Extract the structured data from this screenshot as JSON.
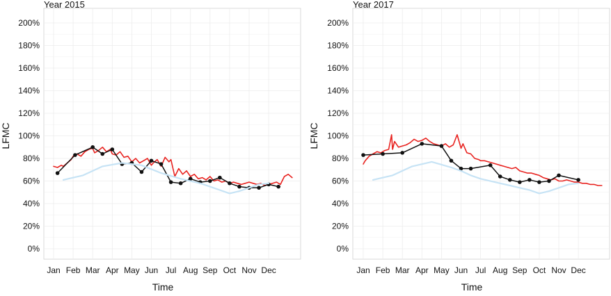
{
  "colors": {
    "red": "#e8221f",
    "black": "#111111",
    "light_blue": "#c6e3f5",
    "grid": "#ececec"
  },
  "chart_data": [
    {
      "type": "line",
      "title": "Year 2015",
      "xlabel": "Time",
      "ylabel": "LFMC",
      "x_tick_labels": [
        "Jan",
        "Feb",
        "Mar",
        "Apr",
        "May",
        "Jun",
        "Jul",
        "Aug",
        "Sep",
        "Oct",
        "Nov",
        "Dec"
      ],
      "y_tick_labels": [
        "0%",
        "20%",
        "40%",
        "60%",
        "80%",
        "100%",
        "120%",
        "140%",
        "160%",
        "180%",
        "200%"
      ],
      "ylim": [
        0,
        200
      ],
      "xlim": [
        0,
        12.6
      ],
      "grid": true,
      "series": [
        {
          "color": "red",
          "style": "line",
          "x": [
            0,
            0.2,
            0.4,
            0.5,
            0.7,
            0.9,
            1.0,
            1.2,
            1.4,
            1.6,
            1.8,
            2.0,
            2.1,
            2.3,
            2.5,
            2.7,
            2.9,
            3.0,
            3.2,
            3.4,
            3.6,
            3.8,
            4.0,
            4.2,
            4.4,
            4.6,
            4.8,
            5.0,
            5.1,
            5.3,
            5.5,
            5.7,
            5.9,
            6.0,
            6.2,
            6.4,
            6.6,
            6.8,
            7.0,
            7.2,
            7.4,
            7.6,
            7.8,
            8.0,
            8.2,
            8.4,
            8.6,
            8.8,
            9.0,
            9.2,
            9.4,
            9.6,
            9.8,
            10.0,
            10.2,
            10.4,
            10.6,
            10.8,
            11.0,
            11.2,
            11.4,
            11.6,
            11.8,
            12.0,
            12.2
          ],
          "y": [
            73,
            72,
            74,
            73,
            76,
            79,
            82,
            84,
            82,
            86,
            88,
            89,
            85,
            87,
            90,
            86,
            88,
            84,
            83,
            86,
            81,
            82,
            77,
            80,
            76,
            78,
            80,
            74,
            76,
            79,
            73,
            81,
            77,
            79,
            64,
            71,
            66,
            69,
            64,
            66,
            62,
            63,
            61,
            64,
            60,
            61,
            59,
            60,
            58,
            59,
            58,
            57,
            58,
            59,
            58,
            57,
            58,
            56,
            57,
            58,
            59,
            57,
            64,
            66,
            63
          ]
        },
        {
          "color": "black",
          "style": "line-markers",
          "x": [
            0.2,
            1.1,
            2.0,
            2.5,
            3.0,
            3.5,
            4.0,
            4.5,
            5.0,
            5.5,
            6.0,
            6.5,
            7.0,
            7.5,
            8.0,
            8.5,
            9.0,
            9.5,
            10.0,
            10.5,
            11.0,
            11.5
          ],
          "y": [
            67,
            83,
            90,
            84,
            88,
            75,
            76,
            68,
            78,
            75,
            59,
            58,
            62,
            59,
            60,
            63,
            58,
            55,
            54,
            54,
            57,
            55
          ]
        },
        {
          "color": "light_blue",
          "style": "line",
          "x": [
            0.5,
            1.5,
            2.5,
            3.5,
            4.5,
            5.5,
            6.5,
            7.5,
            8.5,
            9.0,
            9.5,
            10.0,
            10.5,
            11.0
          ],
          "y": [
            61,
            65,
            73,
            76,
            74,
            67,
            62,
            58,
            52,
            49,
            51,
            54,
            57,
            58
          ]
        }
      ]
    },
    {
      "type": "line",
      "title": "Year 2017",
      "xlabel": "Time",
      "ylabel": "LFMC",
      "x_tick_labels": [
        "Jan",
        "Feb",
        "Mar",
        "Apr",
        "May",
        "Jun",
        "Jul",
        "Aug",
        "Sep",
        "Oct",
        "Nov",
        "Dec"
      ],
      "y_tick_labels": [
        "0%",
        "20%",
        "40%",
        "60%",
        "80%",
        "100%",
        "120%",
        "140%",
        "160%",
        "180%",
        "200%"
      ],
      "ylim": [
        0,
        200
      ],
      "xlim": [
        0,
        12.6
      ],
      "grid": true,
      "series": [
        {
          "color": "red",
          "style": "line",
          "x": [
            0,
            0.1,
            0.3,
            0.5,
            0.7,
            0.9,
            1.1,
            1.3,
            1.45,
            1.5,
            1.6,
            1.8,
            2.0,
            2.2,
            2.4,
            2.6,
            2.8,
            3.0,
            3.2,
            3.4,
            3.6,
            3.8,
            4.0,
            4.2,
            4.4,
            4.6,
            4.8,
            4.9,
            5.0,
            5.1,
            5.3,
            5.5,
            5.7,
            5.9,
            6.0,
            6.2,
            6.4,
            6.6,
            6.8,
            7.0,
            7.2,
            7.4,
            7.6,
            7.8,
            8.0,
            8.2,
            8.4,
            8.6,
            8.8,
            9.0,
            9.2,
            9.4,
            9.6,
            9.8,
            10.0,
            10.2,
            10.4,
            10.6,
            10.8,
            11.0,
            11.2,
            11.4,
            11.6,
            11.8,
            12.0,
            12.2
          ],
          "y": [
            75,
            78,
            82,
            84,
            86,
            85,
            87,
            88,
            101,
            88,
            95,
            90,
            91,
            92,
            94,
            97,
            95,
            96,
            98,
            95,
            93,
            92,
            91,
            93,
            90,
            92,
            101,
            95,
            89,
            93,
            85,
            84,
            80,
            79,
            78,
            78,
            77,
            76,
            75,
            74,
            73,
            72,
            71,
            72,
            69,
            68,
            67,
            67,
            66,
            65,
            63,
            62,
            61,
            62,
            60,
            60,
            61,
            60,
            59,
            59,
            58,
            58,
            57,
            57,
            56,
            56
          ]
        },
        {
          "color": "black",
          "style": "line-markers",
          "x": [
            0,
            1.0,
            2.0,
            3.0,
            4.0,
            4.5,
            5.0,
            5.5,
            6.5,
            7.0,
            7.5,
            8.0,
            8.5,
            9.0,
            9.5,
            10.0,
            11.0
          ],
          "y": [
            83,
            84,
            85,
            93,
            91,
            78,
            71,
            71,
            74,
            64,
            61,
            59,
            61,
            59,
            60,
            65,
            61
          ]
        },
        {
          "color": "light_blue",
          "style": "line",
          "x": [
            0.5,
            1.5,
            2.5,
            3.5,
            4.5,
            5.0,
            5.5,
            6.0,
            7.0,
            7.5,
            8.0,
            8.5,
            9.0,
            9.5,
            10.0,
            10.5,
            11.0
          ],
          "y": [
            61,
            65,
            73,
            77,
            72,
            69,
            65,
            62,
            58,
            56,
            54,
            52,
            49,
            51,
            54,
            57,
            58
          ]
        }
      ]
    }
  ]
}
